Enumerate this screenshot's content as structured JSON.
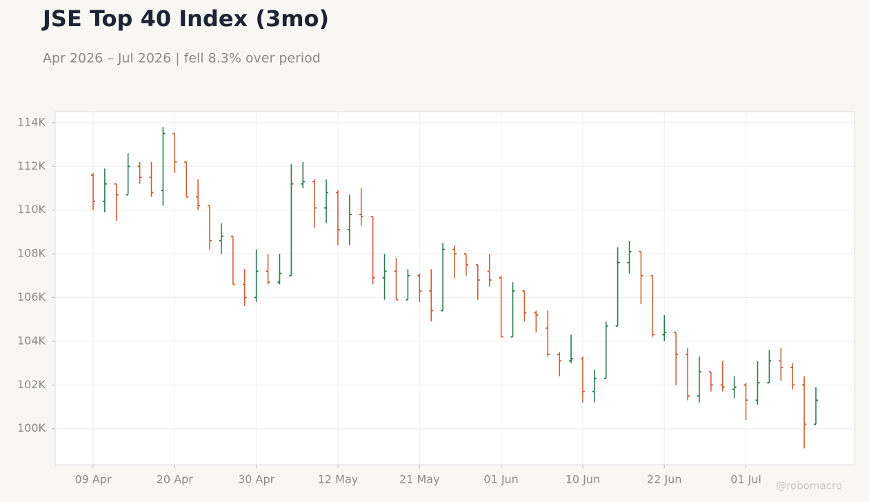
{
  "chart_data": {
    "type": "ohlc",
    "title": "JSE Top 40 Index (3mo)",
    "subtitle": "Apr 2026 – Jul 2026 | fell 8.3% over period",
    "watermark": "@robomacro",
    "categories": [
      "09 Apr",
      null,
      null,
      null,
      null,
      null,
      null,
      "20 Apr",
      null,
      null,
      null,
      null,
      null,
      null,
      "30 Apr",
      null,
      null,
      null,
      null,
      null,
      null,
      "12 May",
      null,
      null,
      null,
      null,
      null,
      null,
      "21 May",
      null,
      null,
      null,
      null,
      null,
      null,
      "01 Jun",
      null,
      null,
      null,
      null,
      null,
      null,
      "10 Jun",
      null,
      null,
      null,
      null,
      null,
      null,
      "22 Jun",
      null,
      null,
      null,
      null,
      null,
      null,
      "01 Jul",
      null,
      null,
      null,
      null,
      null,
      null
    ],
    "open": [
      111600,
      110400,
      111200,
      110700,
      112000,
      111500,
      110900,
      113500,
      112200,
      110600,
      110200,
      108600,
      108800,
      106600,
      106000,
      107200,
      106700,
      107000,
      111200,
      111300,
      110100,
      110800,
      109100,
      109800,
      109700,
      106900,
      107200,
      105900,
      107000,
      106300,
      105400,
      108200,
      108000,
      107500,
      107200,
      106900,
      104200,
      106300,
      105300,
      104600,
      103400,
      103100,
      103200,
      101700,
      102300,
      104700,
      107600,
      108100,
      107000,
      104300,
      104400,
      103400,
      101500,
      102600,
      102000,
      101800,
      102000,
      101300,
      102100,
      103100,
      102800,
      102000,
      100200
    ],
    "high": [
      111700,
      111900,
      111200,
      112600,
      112200,
      112200,
      113800,
      113500,
      112200,
      111400,
      110200,
      109400,
      108800,
      107300,
      108200,
      108000,
      108000,
      112100,
      112200,
      111400,
      111400,
      110900,
      110700,
      111000,
      109700,
      108000,
      107800,
      107300,
      107100,
      107300,
      108500,
      108400,
      108000,
      107500,
      108000,
      107000,
      106700,
      106300,
      105400,
      105400,
      103500,
      104300,
      103300,
      102700,
      104900,
      108300,
      108600,
      108100,
      107000,
      105200,
      104400,
      103700,
      103300,
      102600,
      103100,
      102400,
      102100,
      103100,
      103600,
      103700,
      103000,
      102400,
      101900
    ],
    "low": [
      110000,
      109900,
      109500,
      110700,
      111200,
      110600,
      110200,
      111700,
      110600,
      110000,
      108200,
      108000,
      106600,
      105600,
      105800,
      106600,
      106600,
      107000,
      111000,
      109200,
      109400,
      108400,
      108400,
      109300,
      106600,
      105900,
      105900,
      105900,
      105800,
      104900,
      105400,
      106900,
      107000,
      105900,
      106500,
      104200,
      104200,
      104900,
      104400,
      103300,
      102400,
      103000,
      101200,
      101200,
      102300,
      104700,
      107100,
      105700,
      104200,
      104000,
      102000,
      101300,
      101200,
      101700,
      101700,
      101400,
      100400,
      101100,
      102100,
      102200,
      101800,
      99100,
      100200
    ],
    "close": [
      110400,
      111200,
      110700,
      112000,
      111500,
      110800,
      113500,
      112200,
      110600,
      110200,
      108600,
      108800,
      106600,
      106000,
      107200,
      106700,
      107100,
      111200,
      111300,
      110100,
      110800,
      109100,
      109800,
      109700,
      106900,
      107200,
      105900,
      107000,
      106300,
      105400,
      108200,
      108000,
      107500,
      106800,
      106800,
      104200,
      106300,
      105300,
      105200,
      103400,
      103100,
      103200,
      101700,
      102300,
      104700,
      107600,
      108100,
      107000,
      104300,
      104400,
      103400,
      101500,
      102600,
      102000,
      101900,
      101900,
      101300,
      102100,
      103100,
      102800,
      102000,
      100200,
      101300
    ],
    "up_color": "#2a7d4f",
    "down_color": "#c8623a",
    "ylim": [
      98350,
      114500
    ],
    "yticks": [
      {
        "value": 100000,
        "label": "100K"
      },
      {
        "value": 102000,
        "label": "102K"
      },
      {
        "value": 104000,
        "label": "104K"
      },
      {
        "value": 106000,
        "label": "106K"
      },
      {
        "value": 108000,
        "label": "108K"
      },
      {
        "value": 110000,
        "label": "110K"
      },
      {
        "value": 112000,
        "label": "112K"
      },
      {
        "value": 114000,
        "label": "114K"
      }
    ],
    "grid": true
  }
}
